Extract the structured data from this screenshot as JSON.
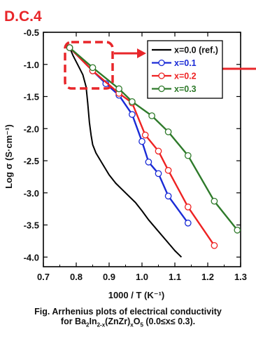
{
  "figure_tag": "D.C.4",
  "caption": {
    "line1": "Fig. Arrhenius plots of electrical conductivity",
    "line2_prefix": "for Ba",
    "sub1": "2",
    "mid1": "In",
    "sub2": "2-x",
    "mid2": "(ZnZr)",
    "sub3": "x",
    "mid3": "O",
    "sub4": "5",
    "line2_suffix": " (0.0≤x≤ 0.3)."
  },
  "colors": {
    "tag": "#e8262a",
    "highlight": "#e8262a"
  },
  "chart_data": {
    "type": "line",
    "xlabel": "1000 / T (K⁻¹)",
    "ylabel": "Log σ (S·cm⁻¹)",
    "xlim": [
      0.7,
      1.3
    ],
    "ylim": [
      -4.15,
      -0.5
    ],
    "xticks": [
      "0.7",
      "0.8",
      "0.9",
      "1.0",
      "1.1",
      "1.2",
      "1.3"
    ],
    "yticks": [
      "-0.5",
      "-1.0",
      "-1.5",
      "-2.0",
      "-2.5",
      "-3.0",
      "-3.5",
      "-4.0"
    ],
    "legend_position": "top-right",
    "series": [
      {
        "name": "x=0.0 (ref.)",
        "color": "#000000",
        "markers": false,
        "points": [
          [
            0.78,
            -0.74
          ],
          [
            0.785,
            -0.8
          ],
          [
            0.79,
            -0.86
          ],
          [
            0.8,
            -0.96
          ],
          [
            0.81,
            -1.06
          ],
          [
            0.82,
            -1.16
          ],
          [
            0.83,
            -1.35
          ],
          [
            0.835,
            -1.6
          ],
          [
            0.84,
            -1.9
          ],
          [
            0.845,
            -2.1
          ],
          [
            0.85,
            -2.25
          ],
          [
            0.86,
            -2.38
          ],
          [
            0.88,
            -2.55
          ],
          [
            0.9,
            -2.72
          ],
          [
            0.92,
            -2.85
          ],
          [
            0.95,
            -3.0
          ],
          [
            0.98,
            -3.15
          ],
          [
            1.0,
            -3.28
          ],
          [
            1.02,
            -3.42
          ],
          [
            1.05,
            -3.6
          ],
          [
            1.08,
            -3.78
          ],
          [
            1.1,
            -3.9
          ],
          [
            1.12,
            -4.0
          ]
        ]
      },
      {
        "name": "x=0.1",
        "color": "#1a2bd6",
        "markers": true,
        "points": [
          [
            0.78,
            -0.74
          ],
          [
            0.85,
            -1.1
          ],
          [
            0.89,
            -1.3
          ],
          [
            0.93,
            -1.48
          ],
          [
            0.97,
            -1.78
          ],
          [
            1.0,
            -2.2
          ],
          [
            1.02,
            -2.52
          ],
          [
            1.05,
            -2.7
          ],
          [
            1.08,
            -3.05
          ],
          [
            1.14,
            -3.47
          ]
        ]
      },
      {
        "name": "x=0.2",
        "color": "#ee2222",
        "markers": true,
        "points": [
          [
            0.78,
            -0.74
          ],
          [
            0.85,
            -1.1
          ],
          [
            0.93,
            -1.45
          ],
          [
            0.97,
            -1.6
          ],
          [
            1.01,
            -2.1
          ],
          [
            1.05,
            -2.35
          ],
          [
            1.08,
            -2.65
          ],
          [
            1.14,
            -3.22
          ],
          [
            1.22,
            -3.82
          ]
        ]
      },
      {
        "name": "x=0.3",
        "color": "#2e7a2a",
        "markers": true,
        "points": [
          [
            0.78,
            -0.74
          ],
          [
            0.85,
            -1.05
          ],
          [
            0.93,
            -1.38
          ],
          [
            0.97,
            -1.58
          ],
          [
            1.03,
            -1.8
          ],
          [
            1.08,
            -2.05
          ],
          [
            1.14,
            -2.42
          ],
          [
            1.22,
            -3.13
          ],
          [
            1.29,
            -3.58
          ]
        ]
      }
    ]
  }
}
